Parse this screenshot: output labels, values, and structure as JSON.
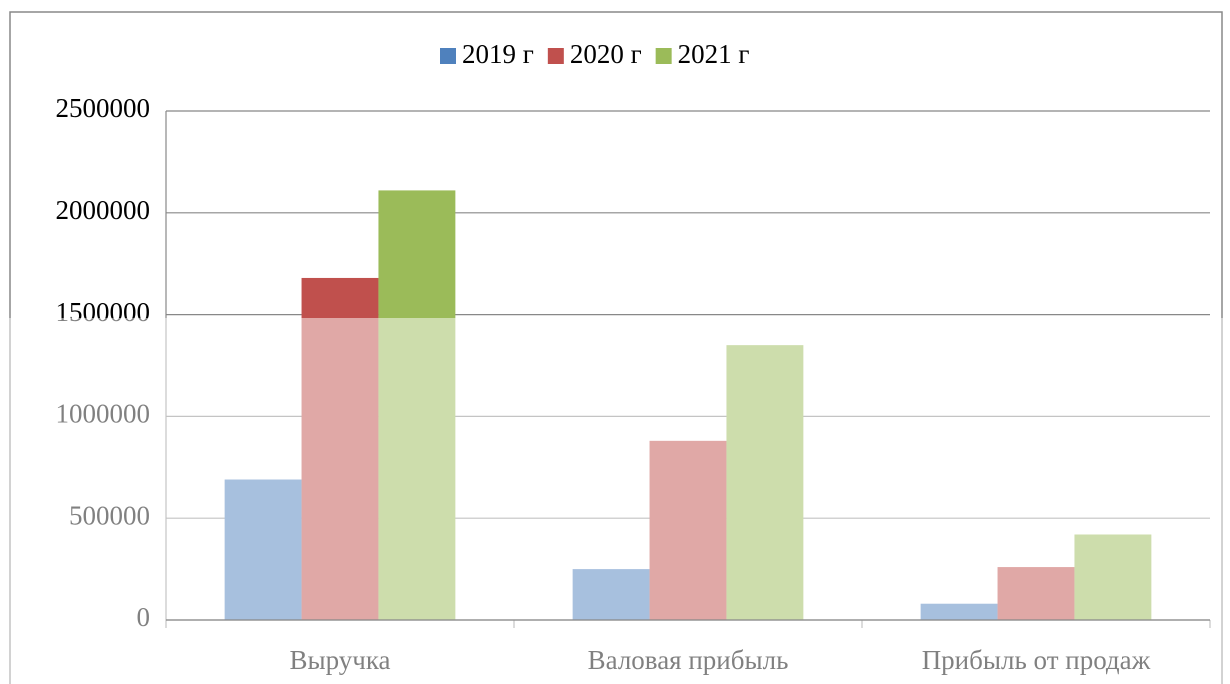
{
  "chart_data": {
    "type": "bar",
    "categories": [
      "Выручка",
      "Валовая прибыль",
      "Прибыль  от продаж"
    ],
    "series": [
      {
        "name": "2019 г",
        "color": "#4f81bd",
        "values": [
          690000,
          250000,
          80000
        ]
      },
      {
        "name": "2020 г",
        "color": "#c0504d",
        "values": [
          1680000,
          880000,
          260000
        ]
      },
      {
        "name": "2021 г",
        "color": "#9bbb59",
        "values": [
          2110000,
          1350000,
          420000
        ]
      }
    ],
    "ylim": [
      0,
      2500000
    ],
    "yticks": [
      0,
      500000,
      1000000,
      1500000,
      2000000,
      2500000
    ],
    "grid": true,
    "legend": "top"
  }
}
